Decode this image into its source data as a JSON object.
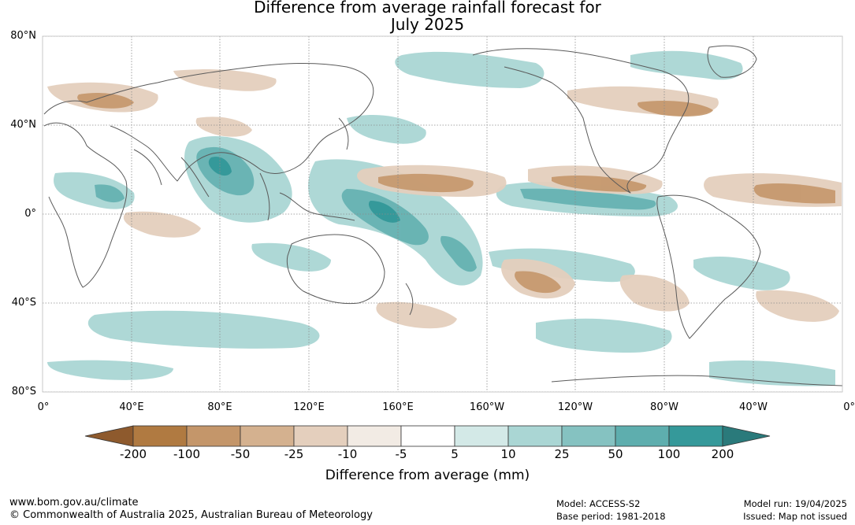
{
  "title_line1": "Difference from average rainfall forecast for",
  "title_line2": "July 2025",
  "lat_labels": [
    "80°N",
    "40°N",
    "0°",
    "40°S",
    "80°S"
  ],
  "lon_labels": [
    "0°",
    "40°E",
    "80°E",
    "120°E",
    "160°E",
    "160°W",
    "120°W",
    "80°W",
    "40°W",
    "0°"
  ],
  "legend": {
    "ticks": [
      "-200",
      "-100",
      "-50",
      "-25",
      "-10",
      "-5",
      "5",
      "10",
      "25",
      "50",
      "100",
      "200"
    ],
    "colors": [
      "#b07a41",
      "#c4966a",
      "#d4b18f",
      "#e4cfbd",
      "#f2ebe4",
      "#ffffff",
      "#d3e9e7",
      "#aad6d4",
      "#85c2c1",
      "#5eaeae",
      "#35999a"
    ],
    "under_color": "#8e5a2d",
    "over_color": "#2a7a7b",
    "label": "Difference from average (mm)"
  },
  "colors": {
    "coast": "#5a5a5a",
    "grid": "#8a8a8a",
    "dry_strong": "#c4966a",
    "dry_weak": "#e4cfbd",
    "wet_weak": "#aad6d4",
    "wet_strong": "#5eaeae"
  },
  "footer": {
    "website": "www.bom.gov.au/climate",
    "copyright": "© Commonwealth of Australia 2025, Australian Bureau of Meteorology",
    "model": "Model: ACCESS-S2",
    "base_period": "Base period: 1981-2018",
    "model_run": "Model run: 19/04/2025",
    "issued": "Issued: Map not issued"
  }
}
